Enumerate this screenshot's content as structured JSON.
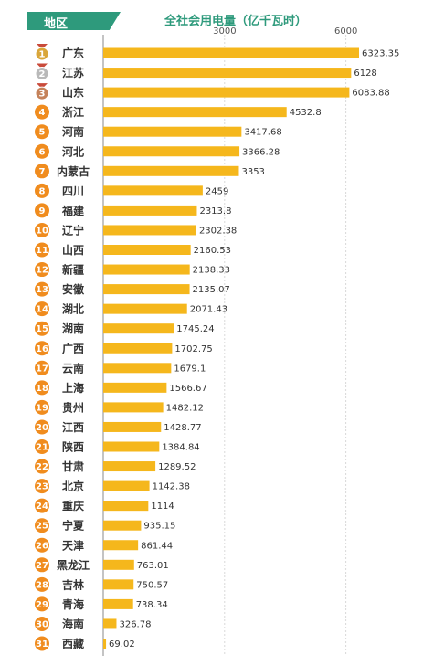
{
  "header": {
    "region_label": "地区",
    "title": "全社会用电量（亿千瓦时）"
  },
  "colors": {
    "bar": "#f5b71c",
    "rank_badge": "#f08c1e",
    "header_bg": "#2e9a7c",
    "medal_gold": "#d9a63a",
    "medal_silver": "#b9b9b9",
    "medal_bronze": "#c5825a",
    "grid": "#cfcfcf"
  },
  "chart_data": {
    "type": "bar",
    "orientation": "horizontal",
    "title": "全社会用电量（亿千瓦时）",
    "category_header": "地区",
    "xlim": [
      0,
      7500
    ],
    "ticks": [
      3000,
      6000
    ],
    "grid": true,
    "categories": [
      "广东",
      "江苏",
      "山东",
      "浙江",
      "河南",
      "河北",
      "内蒙古",
      "四川",
      "福建",
      "辽宁",
      "山西",
      "新疆",
      "安徽",
      "湖北",
      "湖南",
      "广西",
      "云南",
      "上海",
      "贵州",
      "江西",
      "陕西",
      "甘肃",
      "北京",
      "重庆",
      "宁夏",
      "天津",
      "黑龙江",
      "吉林",
      "青海",
      "海南",
      "西藏"
    ],
    "ranks": [
      "1",
      "2",
      "3",
      "4",
      "5",
      "6",
      "7",
      "8",
      "9",
      "10",
      "11",
      "12",
      "13",
      "14",
      "15",
      "16",
      "17",
      "18",
      "19",
      "20",
      "21",
      "22",
      "23",
      "24",
      "25",
      "26",
      "27",
      "28",
      "29",
      "30",
      "31"
    ],
    "values": [
      6323.35,
      6128,
      6083.88,
      4532.8,
      3417.68,
      3366.28,
      3353,
      2459,
      2313.8,
      2302.38,
      2160.53,
      2138.33,
      2135.07,
      2071.43,
      1745.24,
      1702.75,
      1679.1,
      1566.67,
      1482.12,
      1428.77,
      1384.84,
      1289.52,
      1142.38,
      1114,
      935.15,
      861.44,
      763.01,
      750.57,
      738.34,
      326.78,
      69.02
    ],
    "value_labels": [
      "6323.35",
      "6128",
      "6083.88",
      "4532.8",
      "3417.68",
      "3366.28",
      "3353",
      "2459",
      "2313.8",
      "2302.38",
      "2160.53",
      "2138.33",
      "2135.07",
      "2071.43",
      "1745.24",
      "1702.75",
      "1679.1",
      "1566.67",
      "1482.12",
      "1428.77",
      "1384.84",
      "1289.52",
      "1142.38",
      "1114",
      "935.15",
      "861.44",
      "763.01",
      "750.57",
      "738.34",
      "326.78",
      "69.02"
    ]
  }
}
